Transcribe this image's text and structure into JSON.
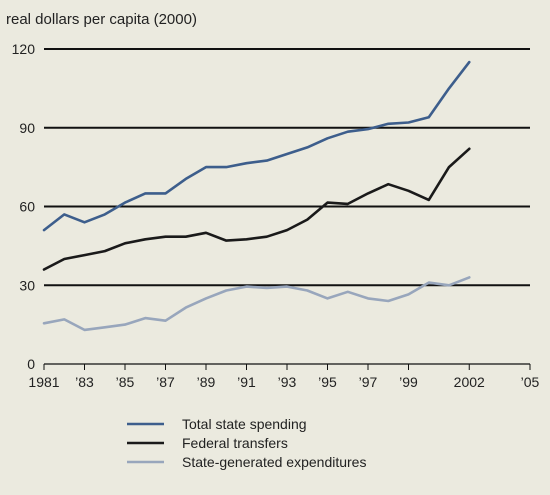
{
  "chart_data": {
    "type": "line",
    "title": "",
    "ylabel": "real dollars per capita (2000)",
    "xlabel": "",
    "ylim": [
      0,
      120
    ],
    "xlim": [
      1981,
      2005
    ],
    "grid": true,
    "legend_position": "bottom",
    "y_ticks": [
      0,
      30,
      60,
      90,
      120
    ],
    "y_tick_labels": [
      "0",
      "30",
      "60",
      "90",
      "120"
    ],
    "x_ticks": [
      1981,
      1983,
      1985,
      1987,
      1989,
      1991,
      1993,
      1995,
      1997,
      1999,
      2002,
      2005
    ],
    "x_tick_labels": [
      "1981",
      "’83",
      "’85",
      "’87",
      "’89",
      "’91",
      "’93",
      "’95",
      "’97",
      "’99",
      "2002",
      "’05"
    ],
    "x": [
      1981,
      1982,
      1983,
      1984,
      1985,
      1986,
      1987,
      1988,
      1989,
      1990,
      1991,
      1992,
      1993,
      1994,
      1995,
      1996,
      1997,
      1998,
      1999,
      2000,
      2001,
      2002
    ],
    "series": [
      {
        "name": "Total state spending",
        "color": "#3d5e8c",
        "values": [
          51,
          57,
          54,
          57,
          61.5,
          65,
          65,
          70.5,
          75,
          75,
          76.5,
          77.5,
          80,
          82.5,
          86,
          88.5,
          89.5,
          91.5,
          92,
          94,
          105,
          115
        ]
      },
      {
        "name": "Federal transfers",
        "color": "#1a1a1a",
        "values": [
          36,
          40,
          41.5,
          43,
          46,
          47.5,
          48.5,
          48.5,
          50,
          47,
          47.5,
          48.5,
          51,
          55,
          61.5,
          61,
          65,
          68.5,
          66,
          62.5,
          75,
          82
        ]
      },
      {
        "name": "State-generated expenditures",
        "color": "#98a6bc",
        "values": [
          15.5,
          17,
          13,
          14,
          15,
          17.5,
          16.5,
          21.5,
          25,
          28,
          29.5,
          29,
          29.5,
          28,
          25,
          27.5,
          25,
          24,
          26.5,
          31,
          30,
          33
        ]
      }
    ]
  }
}
